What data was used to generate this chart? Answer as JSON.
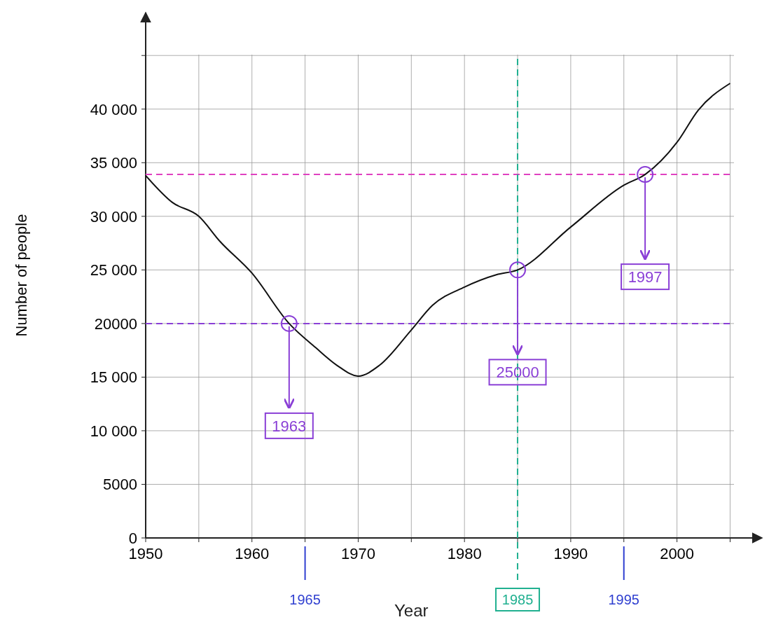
{
  "chart_data": {
    "type": "line",
    "xlabel": "Year",
    "ylabel": "Number of people",
    "x": [
      1950,
      1952.5,
      1955,
      1957,
      1960,
      1963.5,
      1966,
      1968,
      1970,
      1972,
      1975,
      1977,
      1980,
      1983,
      1985,
      1990,
      1995,
      1997,
      2000,
      2002,
      2005
    ],
    "series": [
      {
        "color": "#111111",
        "values": [
          33800,
          31300,
          30000,
          27650,
          24700,
          20000,
          17750,
          16100,
          15100,
          16100,
          19400,
          21700,
          23400,
          24550,
          25000,
          29000,
          32900,
          33900,
          36900,
          39900,
          42400
        ]
      }
    ],
    "xlim": [
      1950,
      2008
    ],
    "ylim": [
      0,
      49000
    ],
    "xticks": [
      1950,
      {
        "value": 1955,
        "label": null
      },
      1960,
      {
        "value": 1965,
        "label": null
      },
      1970,
      {
        "value": 1975,
        "label": null
      },
      1980,
      {
        "value": 1985,
        "label": null
      },
      1990,
      {
        "value": 1995,
        "label": null
      },
      2000,
      {
        "value": 2005,
        "label": null
      }
    ],
    "ref_lines": [
      {
        "axis": "y",
        "value": 33900,
        "color": "#e040c0",
        "line_style": "dashed"
      },
      {
        "axis": "y",
        "value": 20000,
        "color": "#8a3fd6",
        "line_style": "dashed"
      },
      {
        "axis": "x",
        "value": 1985,
        "label": "1985",
        "color": "#20b090",
        "line_style": "dashed"
      },
      {
        "axis": "x",
        "value": 1965,
        "label": "1965",
        "color": "#2f3fd0",
        "line_style": "solid"
      },
      {
        "axis": "x",
        "value": 1995,
        "label": "1995",
        "color": "#2f3fd0",
        "line_style": "solid"
      }
    ],
    "yticks": [
      0,
      {
        "value": 5000,
        "label": "5000"
      },
      {
        "value": 10000,
        "label": "10 000"
      },
      {
        "value": 15000,
        "label": "15 000"
      },
      {
        "value": 20000,
        "label": "20000"
      },
      {
        "value": 25000,
        "label": "25 000"
      },
      {
        "value": 30000,
        "label": "30 000"
      },
      {
        "value": 35000,
        "label": "35 000"
      },
      {
        "value": 40000,
        "label": "40 000"
      },
      {
        "value": 45000,
        "label": null
      }
    ],
    "grid": true,
    "marker": "none",
    "line_style": "solid",
    "annotations": [
      {
        "text": "1963",
        "x": 1963.5,
        "y": 20000
      },
      {
        "text": "25000",
        "x": 1985,
        "y": 25000
      },
      {
        "text": "1997",
        "x": 1997,
        "y": 33900
      }
    ]
  }
}
